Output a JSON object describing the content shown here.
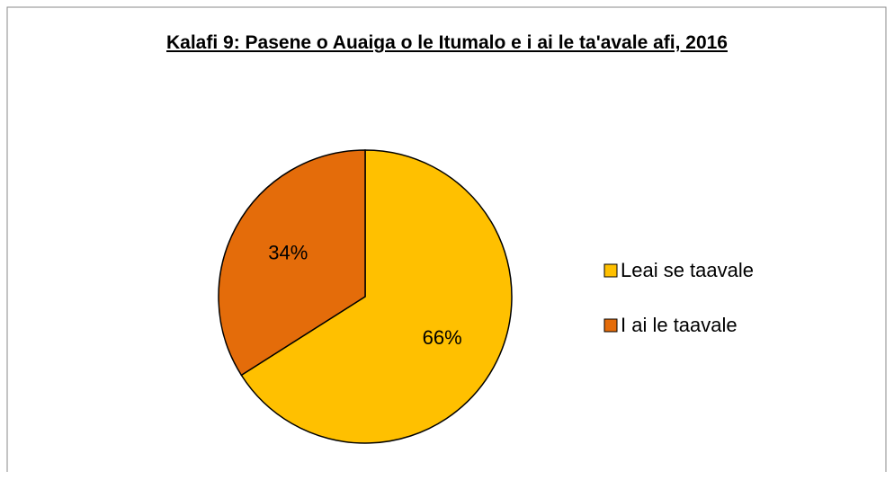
{
  "chart_data": {
    "type": "pie",
    "title": "Kalafi 9: Pasene o Auaiga o le Itumalo e i ai le ta'avale afi, 2016",
    "categories": [
      "Leai se taavale",
      "I ai le taavale"
    ],
    "values": [
      66,
      34
    ],
    "value_labels": [
      "66%",
      "34%"
    ],
    "colors": [
      "#FFC000",
      "#E46C0A"
    ],
    "legend": "right"
  }
}
